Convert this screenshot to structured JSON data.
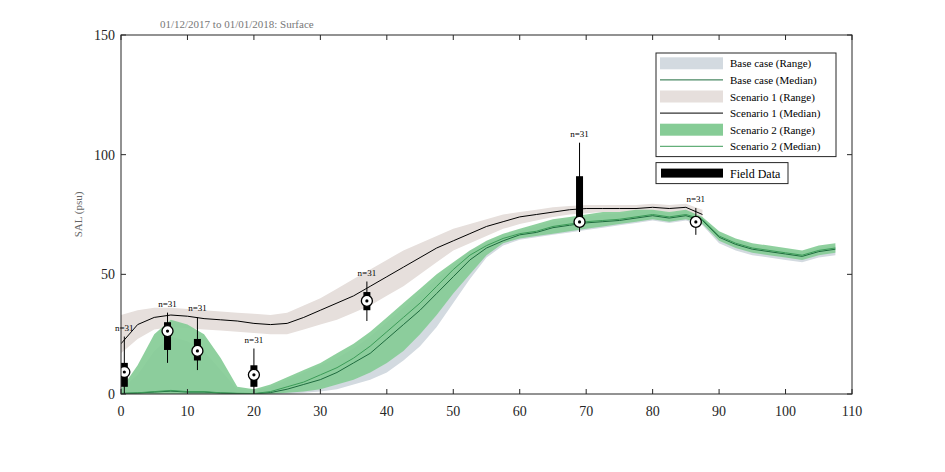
{
  "chart_data": {
    "type": "line",
    "title": "01/12/2017 to 01/01/2018: Surface",
    "y_label": "SAL (psu)",
    "xlim": [
      0,
      110
    ],
    "xticks": [
      0,
      10,
      20,
      30,
      40,
      50,
      60,
      70,
      80,
      90,
      100,
      110
    ],
    "ylim": [
      0,
      150
    ],
    "yticks": [
      0,
      50,
      100,
      150
    ],
    "grid": false,
    "legend": "upper right",
    "x": [
      0,
      2.5,
      5,
      7.5,
      10,
      12.5,
      15,
      17.5,
      20,
      22.5,
      25,
      27.5,
      30,
      32.5,
      35,
      37.5,
      40,
      42.5,
      45,
      47.5,
      50,
      52.5,
      55,
      57.5,
      60,
      62.5,
      65,
      67.5,
      70,
      72.5,
      75,
      77.5,
      80,
      82.5,
      85,
      87.5,
      90,
      92.5,
      95,
      97.5,
      100,
      102.5,
      105,
      107.5
    ],
    "series": [
      {
        "name": "Base case (Range)",
        "type": "area",
        "color": "#d3dae0",
        "upper": [
          2,
          8,
          18,
          24,
          22,
          18,
          10,
          2,
          1.5,
          3,
          6,
          9,
          12,
          15,
          19,
          24,
          30,
          36,
          42,
          48,
          54,
          60,
          63,
          66,
          68,
          70,
          72,
          73,
          74,
          75,
          75.5,
          76,
          76.5,
          75.5,
          76.5,
          73.5,
          67,
          64,
          62,
          61,
          60,
          59,
          61,
          62
        ],
        "lower": [
          0,
          0,
          0,
          0,
          0,
          0,
          0,
          0,
          0,
          0,
          0,
          0.5,
          1,
          2,
          4,
          6,
          9,
          14,
          20,
          28,
          38,
          48,
          57,
          62,
          64.5,
          65.5,
          66.5,
          67.5,
          68.5,
          69.5,
          70.5,
          71.5,
          72.5,
          71.5,
          72.5,
          70.5,
          63,
          60,
          58,
          57,
          56,
          55,
          57,
          58
        ]
      },
      {
        "name": "Base case (Median)",
        "type": "line",
        "color": "#1e6b3e",
        "values": [
          0.2,
          0.4,
          0.8,
          1.2,
          0.8,
          0.8,
          0.4,
          0.2,
          0.1,
          0.6,
          2,
          4,
          6,
          9,
          13,
          17,
          23,
          29,
          35,
          42,
          49,
          56,
          61,
          64,
          66.5,
          67.5,
          69.5,
          70.5,
          71.5,
          72,
          72.5,
          73.5,
          74.5,
          73.5,
          74.5,
          72.5,
          65.5,
          62.5,
          60.5,
          59.5,
          58.5,
          57.5,
          59.5,
          60.5
        ]
      },
      {
        "name": "Scenario 1 (Range)",
        "type": "area",
        "color": "#e6dfdc",
        "upper": [
          33,
          35,
          36,
          36,
          35.5,
          35,
          34.5,
          34,
          33.5,
          33,
          34,
          37,
          40,
          44,
          48,
          52,
          56,
          60,
          63,
          66,
          69,
          71,
          73,
          75,
          76,
          77,
          78,
          78.5,
          79,
          79,
          79,
          79,
          79.5,
          79,
          79.5,
          77,
          null,
          null,
          null,
          null,
          null,
          null,
          null,
          null
        ],
        "lower": [
          17,
          23,
          27,
          28,
          27.5,
          27,
          26.5,
          26,
          25.5,
          25,
          25,
          27,
          29,
          31,
          34,
          37,
          41,
          45,
          50,
          55,
          60,
          63,
          66,
          69,
          71,
          72.5,
          74,
          75,
          75.5,
          76,
          76,
          76,
          76.5,
          76,
          76.5,
          72,
          null,
          null,
          null,
          null,
          null,
          null,
          null,
          null
        ]
      },
      {
        "name": "Scenario 1 (Median)",
        "type": "line",
        "color": "#000000",
        "values": [
          21,
          29,
          32,
          33,
          32.5,
          31.5,
          31,
          30.5,
          29.5,
          29,
          29.5,
          32,
          35,
          38,
          41,
          45,
          49,
          53,
          57,
          61,
          64,
          67,
          70,
          72,
          74,
          75,
          76,
          77,
          77.5,
          77.5,
          77.5,
          77.5,
          78,
          77.5,
          78,
          75,
          null,
          null,
          null,
          null,
          null,
          null,
          null,
          null
        ]
      },
      {
        "name": "Scenario 2 (Range)",
        "type": "area",
        "color": "#86cc96",
        "upper": [
          2,
          12,
          25,
          31,
          29,
          25,
          15,
          3,
          2,
          4,
          7,
          10,
          13,
          17,
          21,
          26,
          32,
          38,
          44,
          50,
          55,
          60,
          64,
          67,
          69,
          71,
          73,
          74,
          75,
          76,
          76,
          77,
          77,
          76,
          77,
          74,
          68,
          65,
          63,
          62,
          61,
          60,
          62,
          63
        ],
        "lower": [
          0,
          0,
          0,
          0,
          0,
          0,
          0,
          0,
          0,
          0,
          0.5,
          1,
          2,
          4,
          6,
          9,
          13,
          18,
          25,
          33,
          42,
          50,
          58,
          63,
          65,
          66,
          67,
          68,
          69,
          70,
          71,
          72,
          73,
          72,
          73,
          71,
          64,
          61,
          59,
          58,
          57,
          56,
          58,
          59
        ]
      },
      {
        "name": "Scenario 2 (Median)",
        "type": "line",
        "color": "#3c9c58",
        "values": [
          0.3,
          0.5,
          1,
          1.5,
          1,
          1,
          0.5,
          0.3,
          0.2,
          1,
          3,
          5,
          8,
          11,
          15,
          20,
          26,
          32,
          38,
          45,
          52,
          58,
          62,
          65,
          67,
          68,
          70,
          71,
          72,
          72.5,
          73,
          74,
          75,
          74,
          75,
          73,
          66,
          63,
          61,
          60,
          59,
          58,
          60,
          61
        ]
      }
    ],
    "field_data": {
      "name": "Field Data",
      "type": "box",
      "color": "#000000",
      "x": [
        0.5,
        7,
        11.5,
        20,
        37,
        69,
        86.5
      ],
      "median": [
        9.2,
        26.3,
        18,
        8,
        38.9,
        71.9,
        71.9
      ],
      "q1": [
        3,
        18.4,
        14,
        3,
        35,
        70,
        70
      ],
      "q3": [
        13,
        30,
        23,
        12,
        42.6,
        91,
        74
      ],
      "whisker_low": [
        0,
        13,
        10,
        0,
        30.5,
        67.7,
        66.5
      ],
      "whisker_high": [
        24,
        34,
        32,
        19,
        47,
        105,
        77.7
      ],
      "labels": [
        "n=31",
        "n=31",
        "n=31",
        "n=31",
        "n=31",
        "n=31",
        "n=31"
      ]
    }
  }
}
